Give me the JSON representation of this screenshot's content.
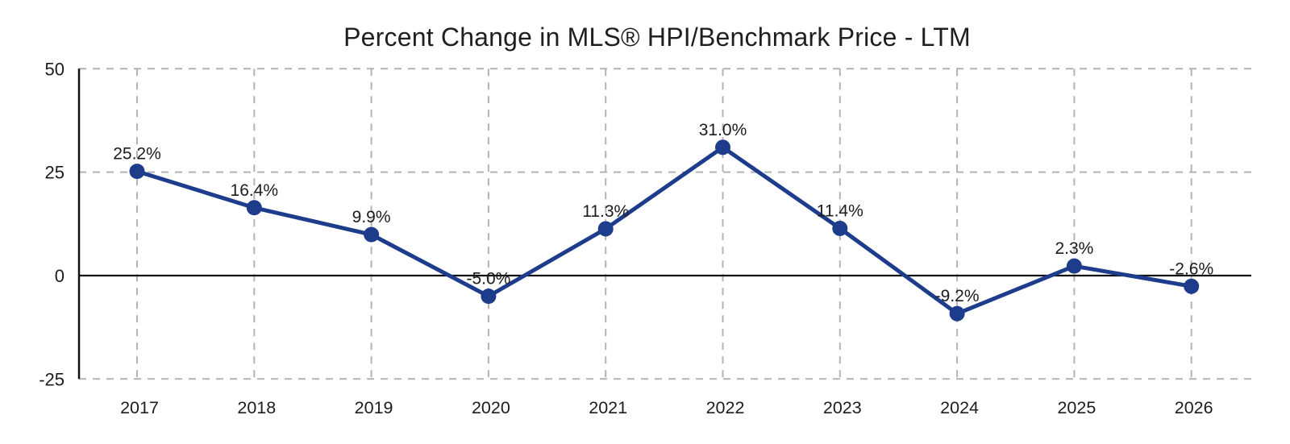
{
  "page": {
    "background_color": "#ffffff"
  },
  "chart_data": {
    "type": "line",
    "title": "Percent Change in MLS® HPI/Benchmark Price - LTM",
    "categories": [
      "2017",
      "2018",
      "2019",
      "2020",
      "2021",
      "2022",
      "2023",
      "2024",
      "2025",
      "2026"
    ],
    "values": [
      25.2,
      16.4,
      9.9,
      -5.0,
      11.3,
      31.0,
      11.4,
      -9.2,
      2.3,
      -2.6
    ],
    "point_labels": [
      "25.2%",
      "16.4%",
      "9.9%",
      "-5.0%",
      "11.3%",
      "31.0%",
      "11.4%",
      "-9.2%",
      "2.3%",
      "-2.6%"
    ],
    "xlabel": "",
    "ylabel": "",
    "y_ticks": [
      50,
      25,
      0,
      -25
    ],
    "ylim": [
      -25,
      50
    ],
    "grid": "dashed",
    "legend": "none",
    "marker": "circle",
    "line_color": "#1e3c8c",
    "marker_color": "#1e3c8c",
    "gridline_color": "#b3b3b3",
    "axis_color": "#111111",
    "zero_line_color": "#111111",
    "label_color": "#111111",
    "title_color": "#1f1f1f"
  }
}
